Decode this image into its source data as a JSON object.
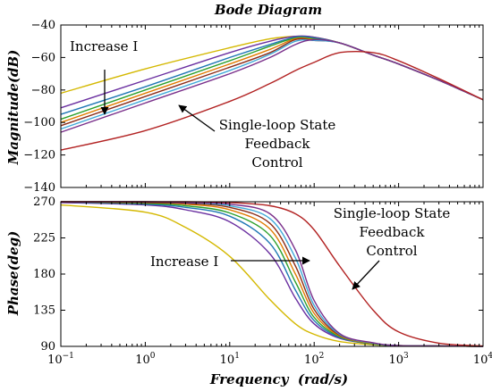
{
  "chart_data": [
    {
      "type": "line",
      "title": "Bode Diagram",
      "xlabel": "",
      "ylabel": "Magnitude(dB)",
      "xscale": "log",
      "xlim": [
        0.1,
        10000
      ],
      "ylim": [
        -140,
        -40
      ],
      "yticks": [
        -40,
        -60,
        -80,
        -100,
        -120,
        -140
      ],
      "grid": false,
      "annotations": [
        {
          "text": "Increase I"
        },
        {
          "text_lines": [
            "Single-loop State",
            "Feedback",
            "Control"
          ]
        }
      ],
      "x": [
        0.1,
        1,
        10,
        30,
        60,
        100,
        200,
        500,
        1000,
        3000,
        10000
      ],
      "series": [
        {
          "color": "#d4b800",
          "values": [
            -82,
            -67,
            -54,
            -48.5,
            -47,
            -47.5,
            -51,
            -58.5,
            -64,
            -74,
            -86
          ]
        },
        {
          "color": "#6a2fa0",
          "values": [
            -91,
            -74,
            -57,
            -50,
            -47,
            -47.5,
            -51,
            -58.5,
            -64,
            -74,
            -86
          ]
        },
        {
          "color": "#1f77b4",
          "values": [
            -95,
            -78,
            -60,
            -52,
            -47.5,
            -48,
            -51,
            -58.5,
            -64,
            -74,
            -86
          ]
        },
        {
          "color": "#2ca02c",
          "values": [
            -98,
            -80,
            -62,
            -53,
            -48,
            -48.5,
            -51,
            -58.5,
            -64,
            -74,
            -86
          ]
        },
        {
          "color": "#e07b00",
          "values": [
            -100,
            -82,
            -64,
            -55,
            -48.5,
            -49,
            -51,
            -58.5,
            -64,
            -74,
            -86
          ]
        },
        {
          "color": "#8c2d19",
          "values": [
            -102,
            -84,
            -66,
            -57,
            -49,
            -49.5,
            -51,
            -58.5,
            -64,
            -74,
            -86
          ]
        },
        {
          "color": "#3fa9d8",
          "values": [
            -104,
            -86,
            -68,
            -58,
            -50,
            -49.5,
            -51,
            -58.5,
            -64,
            -74,
            -86
          ]
        },
        {
          "color": "#7a2f8a",
          "values": [
            -106,
            -88,
            -70,
            -60,
            -52,
            -49,
            -51,
            -58.5,
            -64,
            -74,
            -86
          ]
        },
        {
          "color": "#b22222",
          "values": [
            -117,
            -105,
            -87,
            -76,
            -68,
            -63,
            -57,
            -57,
            -62,
            -73,
            -86
          ]
        }
      ]
    },
    {
      "type": "line",
      "title": "",
      "xlabel": "Frequency  (rad/s)",
      "ylabel": "Phase(deg)",
      "xscale": "log",
      "xlim": [
        0.1,
        10000
      ],
      "ylim": [
        90,
        270
      ],
      "xticks": [
        0.1,
        1,
        10,
        100,
        1000,
        10000
      ],
      "xtick_labels": [
        {
          "base": "10",
          "exp": "−1"
        },
        {
          "base": "10",
          "exp": "0"
        },
        {
          "base": "10",
          "exp": "1"
        },
        {
          "base": "10",
          "exp": "2"
        },
        {
          "base": "10",
          "exp": "3"
        },
        {
          "base": "10",
          "exp": "4"
        }
      ],
      "yticks": [
        90,
        135,
        180,
        225,
        270
      ],
      "grid": false,
      "annotations": [
        {
          "text": "Increase I"
        },
        {
          "text_lines": [
            "Single-loop State",
            "Feedback",
            "Control"
          ]
        }
      ],
      "x": [
        0.1,
        1,
        3,
        10,
        30,
        60,
        100,
        200,
        500,
        1000,
        3000,
        10000
      ],
      "series": [
        {
          "color": "#d4b800",
          "values": [
            266,
            257,
            238,
            202,
            148,
            118,
            105,
            96,
            92,
            91,
            90.5,
            90
          ]
        },
        {
          "color": "#6a2fa0",
          "values": [
            269,
            266,
            260,
            245,
            205,
            150,
            118,
            100,
            93,
            91,
            90.5,
            90
          ]
        },
        {
          "color": "#1f77b4",
          "values": [
            270,
            267,
            263,
            252,
            218,
            160,
            122,
            101,
            93,
            91,
            90.5,
            90
          ]
        },
        {
          "color": "#2ca02c",
          "values": [
            270,
            268,
            265,
            256,
            228,
            170,
            126,
            102,
            93,
            91,
            90.5,
            90
          ]
        },
        {
          "color": "#e07b00",
          "values": [
            270,
            269,
            267,
            260,
            236,
            180,
            131,
            103,
            93.5,
            91,
            90.5,
            90
          ]
        },
        {
          "color": "#8c2d19",
          "values": [
            270,
            269,
            268,
            263,
            243,
            190,
            136,
            104,
            94,
            91,
            90.5,
            90
          ]
        },
        {
          "color": "#3fa9d8",
          "values": [
            270,
            270,
            269,
            265,
            249,
            200,
            141,
            105,
            94,
            91,
            90.5,
            90
          ]
        },
        {
          "color": "#7a2f8a",
          "values": [
            270,
            270,
            269,
            267,
            255,
            210,
            147,
            106,
            94.5,
            91,
            90.5,
            90
          ]
        },
        {
          "color": "#b22222",
          "values": [
            270,
            270,
            270,
            269,
            265,
            255,
            235,
            190,
            135,
            108,
            94,
            90.5
          ]
        }
      ]
    }
  ]
}
